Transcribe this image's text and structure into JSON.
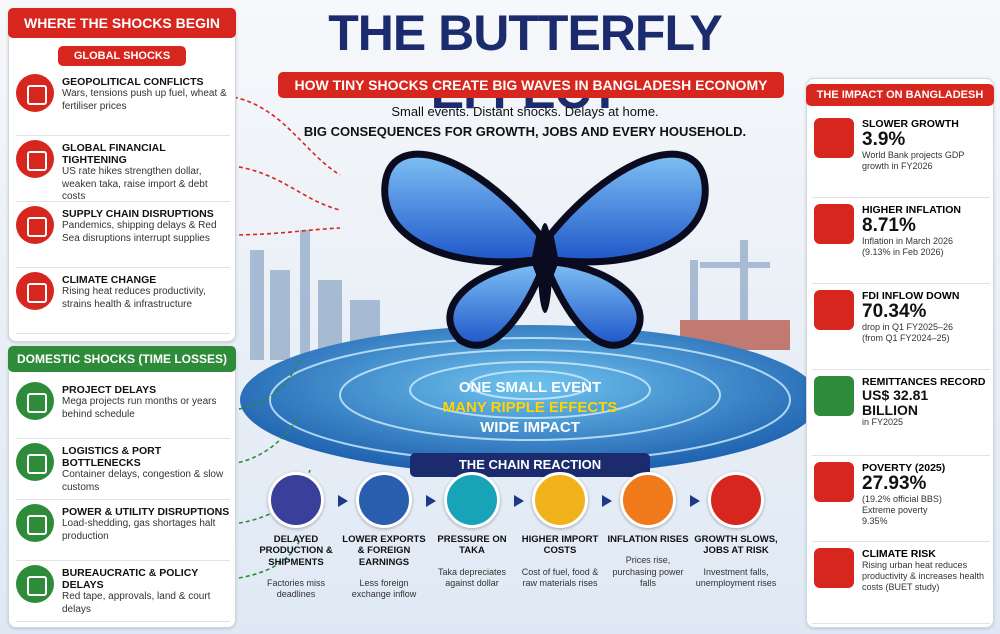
{
  "left": {
    "title": "WHERE THE SHOCKS BEGIN",
    "global": {
      "title": "GLOBAL SHOCKS",
      "items": [
        {
          "title": "GEOPOLITICAL CONFLICTS",
          "text": "Wars, tensions push up fuel, wheat & fertiliser prices"
        },
        {
          "title": "GLOBAL FINANCIAL TIGHTENING",
          "text": "US rate hikes strengthen dollar, weaken taka, raise import & debt costs"
        },
        {
          "title": "SUPPLY CHAIN DISRUPTIONS",
          "text": "Pandemics, shipping delays & Red Sea disruptions interrupt supplies"
        },
        {
          "title": "CLIMATE CHANGE",
          "text": "Rising heat reduces productivity, strains health & infrastructure"
        }
      ]
    },
    "domestic": {
      "title": "DOMESTIC SHOCKS (TIME LOSSES)",
      "items": [
        {
          "title": "PROJECT DELAYS",
          "text": "Mega projects run months or years behind schedule"
        },
        {
          "title": "LOGISTICS & PORT BOTTLENECKS",
          "text": "Container delays, congestion & slow customs"
        },
        {
          "title": "POWER & UTILITY DISRUPTIONS",
          "text": "Load-shedding, gas shortages halt production"
        },
        {
          "title": "BUREAUCRATIC & POLICY DELAYS",
          "text": "Red tape, approvals, land & court delays"
        }
      ]
    }
  },
  "header": {
    "title": "THE BUTTERFLY EFFECT",
    "subtitle": "HOW TINY SHOCKS CREATE BIG WAVES IN BANGLADESH ECONOMY",
    "lines": [
      "Small events. Distant shocks. Delays at home.",
      "BIG CONSEQUENCES FOR GROWTH, JOBS AND EVERY HOUSEHOLD."
    ]
  },
  "center": {
    "lines": [
      "ONE SMALL EVENT",
      "MANY RIPPLE EFFECTS",
      "WIDE IMPACT"
    ]
  },
  "chain": {
    "title": "THE CHAIN REACTION",
    "steps": [
      {
        "title": "DELAYED PRODUCTION & SHIPMENTS",
        "text": "Factories miss deadlines"
      },
      {
        "title": "LOWER EXPORTS & FOREIGN EARNINGS",
        "text": "Less foreign exchange inflow"
      },
      {
        "title": "PRESSURE ON TAKA",
        "text": "Taka depreciates against dollar"
      },
      {
        "title": "HIGHER IMPORT COSTS",
        "text": "Cost of fuel, food & raw materials rises"
      },
      {
        "title": "INFLATION RISES",
        "text": "Prices rise, purchasing power falls"
      },
      {
        "title": "GROWTH SLOWS, JOBS AT RISK",
        "text": "Investment falls, unemployment rises"
      }
    ]
  },
  "impact": {
    "title": "THE IMPACT ON BANGLADESH",
    "items": [
      {
        "title": "SLOWER GROWTH",
        "value": "3.9%",
        "notes": [
          "World Bank projects GDP growth in FY2026"
        ]
      },
      {
        "title": "HIGHER INFLATION",
        "value": "8.71%",
        "notes": [
          "Inflation in March 2026",
          "(9.13% in Feb 2026)"
        ]
      },
      {
        "title": "FDI INFLOW DOWN",
        "value": "70.34%",
        "notes": [
          "drop in Q1 FY2025–26",
          "(from Q1 FY2024–25)"
        ]
      },
      {
        "title": "REMITTANCES RECORD",
        "value": "US$ 32.81 BILLION",
        "notes": [
          "in FY2025"
        ]
      },
      {
        "title": "POVERTY (2025)",
        "value": "27.93%",
        "notes": [
          "(19.2% official BBS)",
          "Extreme poverty",
          "9.35%"
        ]
      },
      {
        "title": "CLIMATE RISK",
        "value": null,
        "notes": [
          "Rising urban heat reduces productivity & increases health costs (BUET study)"
        ]
      }
    ]
  }
}
